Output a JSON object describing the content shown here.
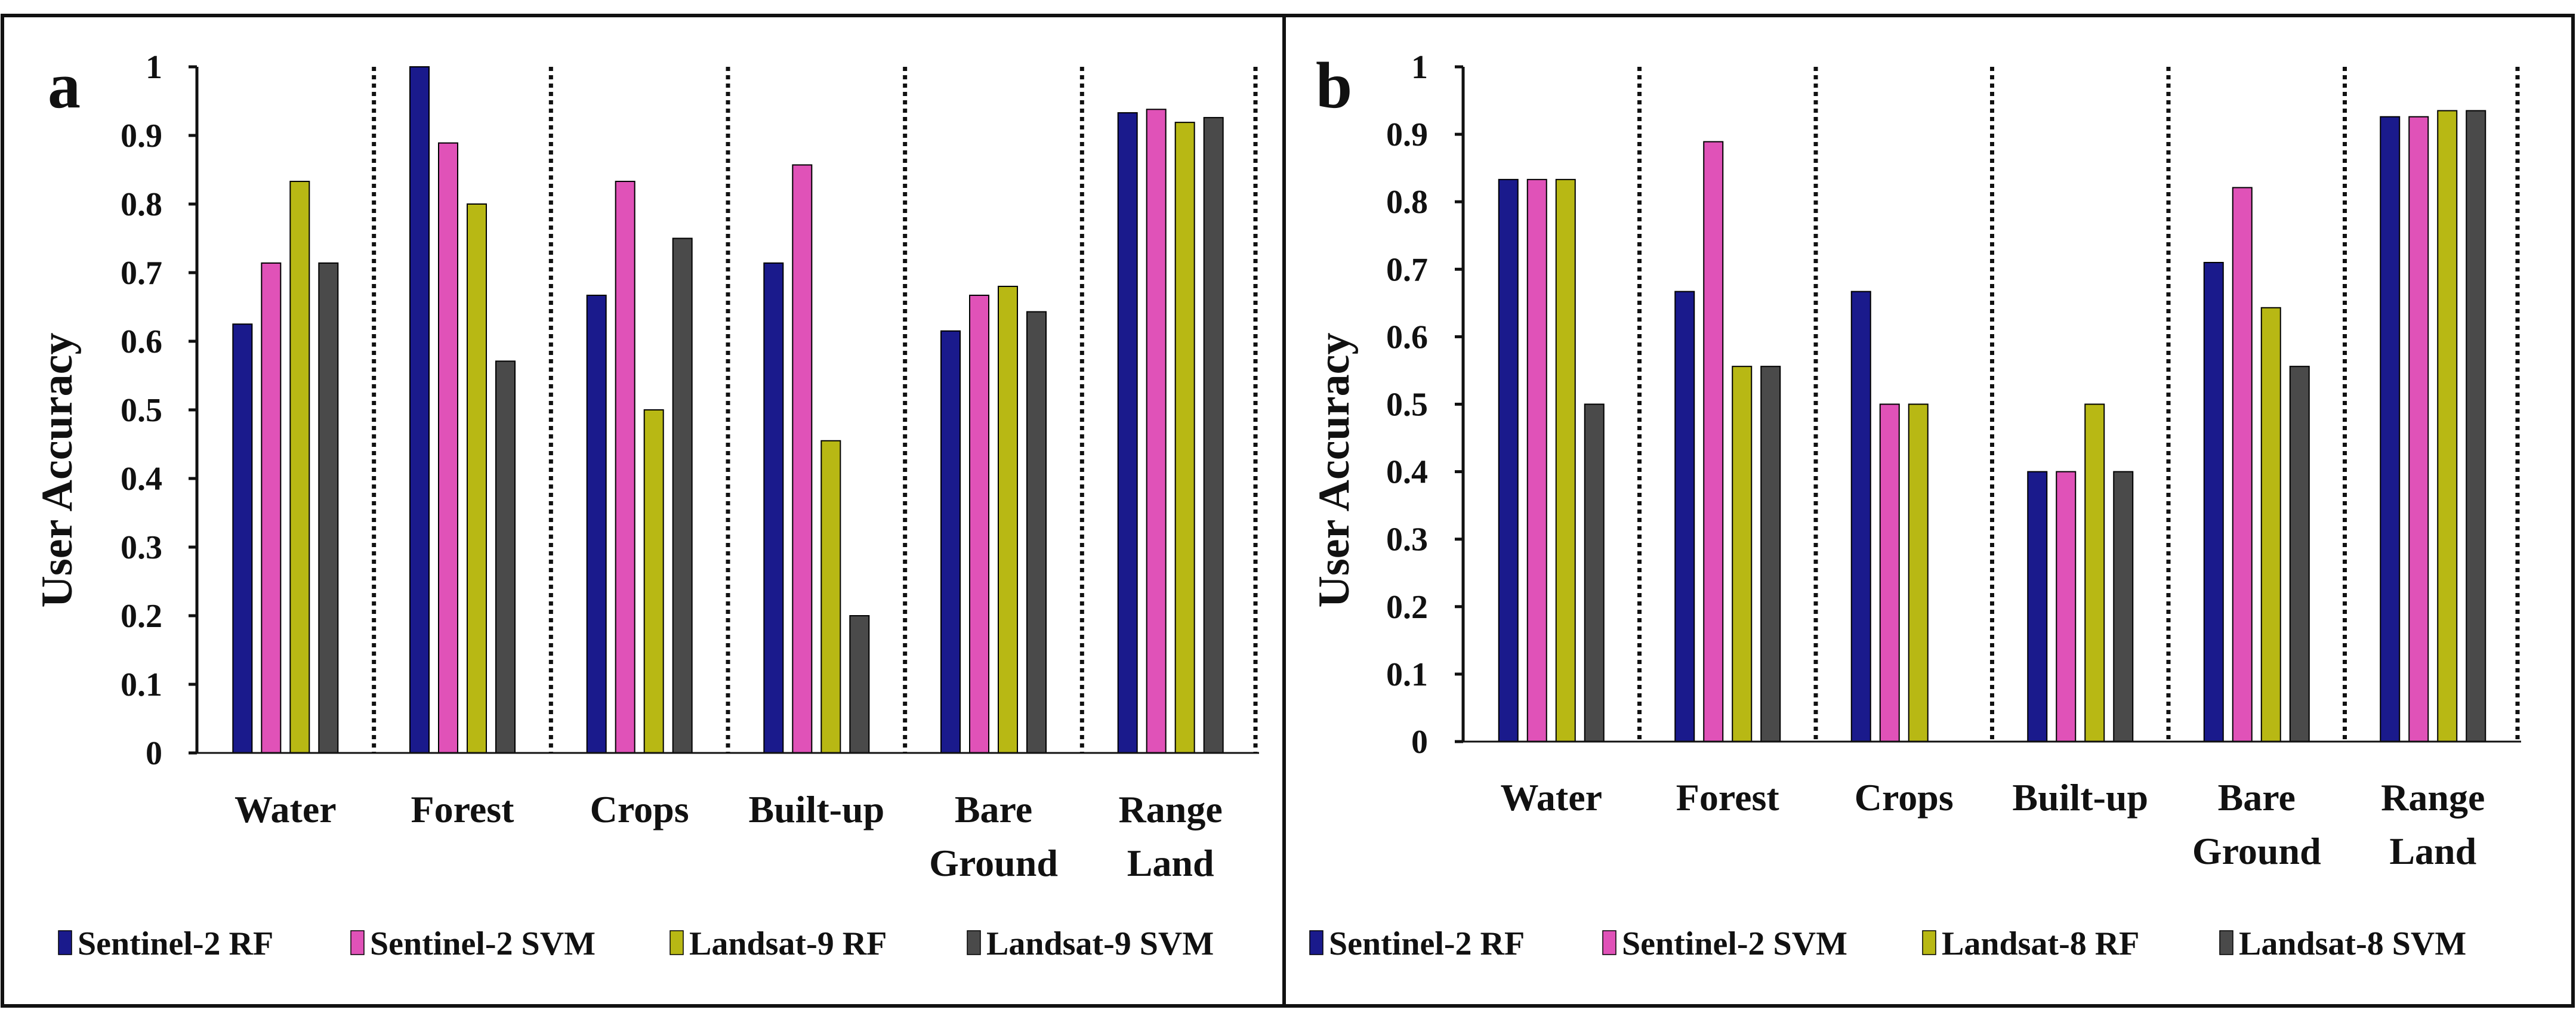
{
  "chart_data": [
    {
      "panel": "a",
      "type": "bar",
      "ylabel": "User Accuracy",
      "ylim": [
        0,
        1
      ],
      "yticks": [
        "0",
        "0.1",
        "0.2",
        "0.3",
        "0.4",
        "0.5",
        "0.6",
        "0.7",
        "0.8",
        "0.9",
        "1"
      ],
      "categories": [
        [
          "Water"
        ],
        [
          "Forest"
        ],
        [
          "Crops"
        ],
        [
          "Built-up"
        ],
        [
          "Bare",
          "Ground"
        ],
        [
          "Range",
          "Land"
        ]
      ],
      "series": [
        {
          "name": "Sentinel-2 RF",
          "color": "#1a1a8c",
          "values": [
            0.625,
            1.0,
            0.667,
            0.714,
            0.615,
            0.933
          ]
        },
        {
          "name": "Sentinel-2 SVM",
          "color": "#e052b8",
          "values": [
            0.714,
            0.889,
            0.833,
            0.857,
            0.667,
            0.938
          ]
        },
        {
          "name": "Landsat-9 RF",
          "color": "#b8b814",
          "values": [
            0.833,
            0.8,
            0.5,
            0.455,
            0.68,
            0.919
          ]
        },
        {
          "name": "Landsat-9 SVM",
          "color": "#4a4a4a",
          "values": [
            0.714,
            0.571,
            0.75,
            0.2,
            0.643,
            0.926
          ]
        }
      ],
      "grid": false,
      "legend_position": "bottom"
    },
    {
      "panel": "b",
      "type": "bar",
      "ylabel": "User Accuracy",
      "ylim": [
        0,
        1
      ],
      "yticks": [
        "0",
        "0.1",
        "0.2",
        "0.3",
        "0.4",
        "0.5",
        "0.6",
        "0.7",
        "0.8",
        "0.9",
        "1"
      ],
      "categories": [
        [
          "Water"
        ],
        [
          "Forest"
        ],
        [
          "Crops"
        ],
        [
          "Built-up"
        ],
        [
          "Bare",
          "Ground"
        ],
        [
          "Range",
          "Land"
        ]
      ],
      "series": [
        {
          "name": "Sentinel-2 RF",
          "color": "#1a1a8c",
          "values": [
            0.833,
            0.667,
            0.667,
            0.4,
            0.71,
            0.926
          ]
        },
        {
          "name": "Sentinel-2 SVM",
          "color": "#e052b8",
          "values": [
            0.833,
            0.889,
            0.5,
            0.4,
            0.821,
            0.926
          ]
        },
        {
          "name": "Landsat-8 RF",
          "color": "#b8b814",
          "values": [
            0.833,
            0.556,
            0.5,
            0.5,
            0.643,
            0.935
          ]
        },
        {
          "name": "Landsat-8 SVM",
          "color": "#4a4a4a",
          "values": [
            0.5,
            0.556,
            0,
            0.4,
            0.556,
            0.935
          ]
        }
      ],
      "grid": false,
      "legend_position": "bottom"
    }
  ]
}
